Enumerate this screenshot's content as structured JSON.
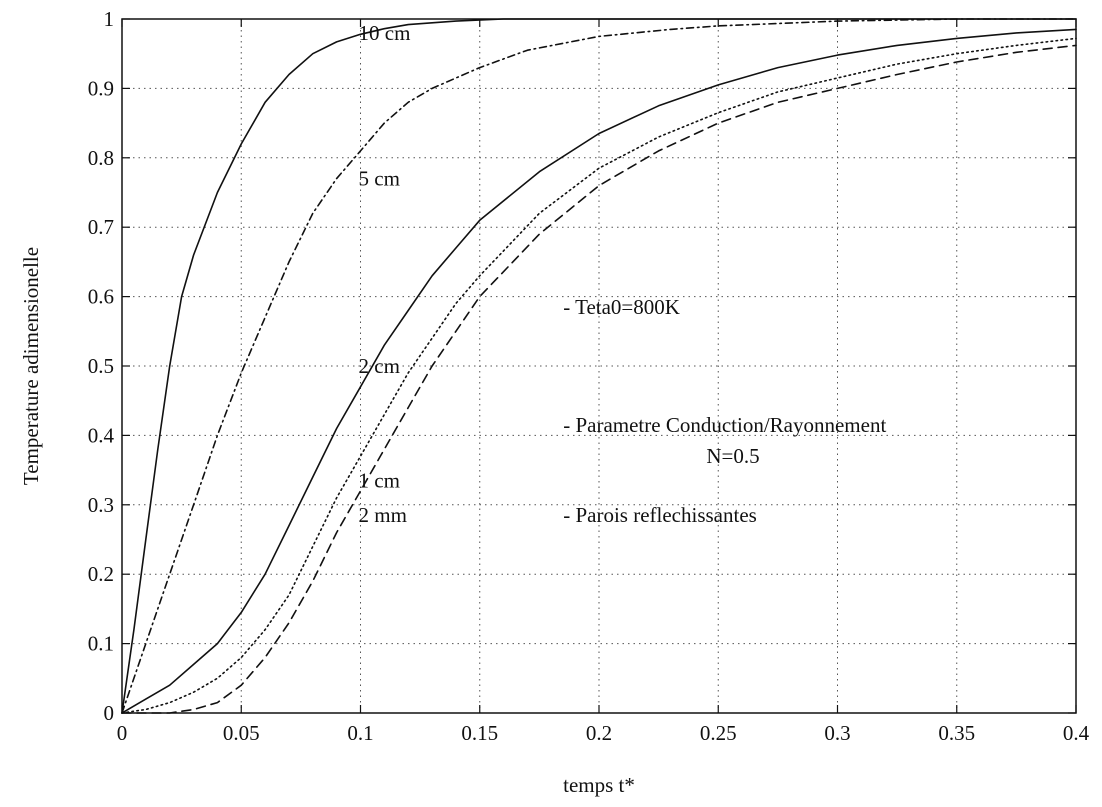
{
  "chart_data": {
    "type": "line",
    "title": "",
    "xlabel": "temps t*",
    "ylabel": "Temperature adimensionelle",
    "xlim": [
      0,
      0.4
    ],
    "ylim": [
      0,
      1
    ],
    "grid": true,
    "x_ticks": [
      "0",
      "0.05",
      "0.1",
      "0.15",
      "0.2",
      "0.25",
      "0.3",
      "0.35",
      "0.4"
    ],
    "y_ticks": [
      "0",
      "0.1",
      "0.2",
      "0.3",
      "0.4",
      "0.5",
      "0.6",
      "0.7",
      "0.8",
      "0.9",
      "1"
    ],
    "series": [
      {
        "name": "10 cm",
        "line_style": "solid",
        "points": [
          [
            0,
            0
          ],
          [
            0.005,
            0.12
          ],
          [
            0.01,
            0.25
          ],
          [
            0.015,
            0.38
          ],
          [
            0.02,
            0.5
          ],
          [
            0.025,
            0.6
          ],
          [
            0.03,
            0.66
          ],
          [
            0.04,
            0.75
          ],
          [
            0.05,
            0.82
          ],
          [
            0.06,
            0.88
          ],
          [
            0.07,
            0.92
          ],
          [
            0.08,
            0.95
          ],
          [
            0.09,
            0.967
          ],
          [
            0.1,
            0.978
          ],
          [
            0.11,
            0.986
          ],
          [
            0.12,
            0.992
          ],
          [
            0.14,
            0.997
          ],
          [
            0.16,
            1
          ],
          [
            0.2,
            1
          ],
          [
            0.3,
            1
          ],
          [
            0.4,
            1
          ]
        ]
      },
      {
        "name": "5 cm",
        "line_style": "dashdot",
        "points": [
          [
            0,
            0
          ],
          [
            0.01,
            0.1
          ],
          [
            0.02,
            0.2
          ],
          [
            0.03,
            0.3
          ],
          [
            0.04,
            0.4
          ],
          [
            0.05,
            0.49
          ],
          [
            0.06,
            0.57
          ],
          [
            0.07,
            0.65
          ],
          [
            0.08,
            0.72
          ],
          [
            0.09,
            0.77
          ],
          [
            0.1,
            0.81
          ],
          [
            0.11,
            0.85
          ],
          [
            0.12,
            0.88
          ],
          [
            0.13,
            0.9
          ],
          [
            0.15,
            0.93
          ],
          [
            0.17,
            0.955
          ],
          [
            0.2,
            0.975
          ],
          [
            0.23,
            0.985
          ],
          [
            0.25,
            0.99
          ],
          [
            0.3,
            0.997
          ],
          [
            0.35,
            1
          ],
          [
            0.4,
            1
          ]
        ]
      },
      {
        "name": "2 cm",
        "line_style": "solid",
        "points": [
          [
            0,
            0
          ],
          [
            0.01,
            0.02
          ],
          [
            0.02,
            0.04
          ],
          [
            0.03,
            0.07
          ],
          [
            0.04,
            0.1
          ],
          [
            0.05,
            0.145
          ],
          [
            0.06,
            0.2
          ],
          [
            0.07,
            0.27
          ],
          [
            0.08,
            0.34
          ],
          [
            0.09,
            0.41
          ],
          [
            0.1,
            0.47
          ],
          [
            0.11,
            0.53
          ],
          [
            0.12,
            0.58
          ],
          [
            0.13,
            0.63
          ],
          [
            0.14,
            0.67
          ],
          [
            0.15,
            0.71
          ],
          [
            0.175,
            0.78
          ],
          [
            0.2,
            0.835
          ],
          [
            0.225,
            0.875
          ],
          [
            0.25,
            0.905
          ],
          [
            0.275,
            0.93
          ],
          [
            0.3,
            0.948
          ],
          [
            0.325,
            0.962
          ],
          [
            0.35,
            0.972
          ],
          [
            0.375,
            0.98
          ],
          [
            0.4,
            0.985
          ]
        ]
      },
      {
        "name": "1 cm",
        "line_style": "dotted",
        "points": [
          [
            0,
            0
          ],
          [
            0.01,
            0.005
          ],
          [
            0.02,
            0.015
          ],
          [
            0.03,
            0.03
          ],
          [
            0.04,
            0.05
          ],
          [
            0.05,
            0.08
          ],
          [
            0.06,
            0.12
          ],
          [
            0.07,
            0.17
          ],
          [
            0.08,
            0.24
          ],
          [
            0.09,
            0.31
          ],
          [
            0.1,
            0.37
          ],
          [
            0.11,
            0.43
          ],
          [
            0.12,
            0.49
          ],
          [
            0.13,
            0.54
          ],
          [
            0.14,
            0.59
          ],
          [
            0.15,
            0.63
          ],
          [
            0.175,
            0.72
          ],
          [
            0.2,
            0.785
          ],
          [
            0.225,
            0.83
          ],
          [
            0.25,
            0.865
          ],
          [
            0.275,
            0.895
          ],
          [
            0.3,
            0.915
          ],
          [
            0.325,
            0.935
          ],
          [
            0.35,
            0.95
          ],
          [
            0.375,
            0.962
          ],
          [
            0.4,
            0.972
          ]
        ]
      },
      {
        "name": "2 mm",
        "line_style": "dashed",
        "points": [
          [
            0,
            0
          ],
          [
            0.02,
            0
          ],
          [
            0.03,
            0.005
          ],
          [
            0.04,
            0.015
          ],
          [
            0.05,
            0.04
          ],
          [
            0.06,
            0.08
          ],
          [
            0.07,
            0.13
          ],
          [
            0.08,
            0.19
          ],
          [
            0.09,
            0.26
          ],
          [
            0.1,
            0.32
          ],
          [
            0.11,
            0.38
          ],
          [
            0.12,
            0.44
          ],
          [
            0.13,
            0.5
          ],
          [
            0.14,
            0.55
          ],
          [
            0.15,
            0.6
          ],
          [
            0.175,
            0.69
          ],
          [
            0.2,
            0.76
          ],
          [
            0.225,
            0.81
          ],
          [
            0.25,
            0.85
          ],
          [
            0.275,
            0.88
          ],
          [
            0.3,
            0.9
          ],
          [
            0.325,
            0.92
          ],
          [
            0.35,
            0.938
          ],
          [
            0.375,
            0.952
          ],
          [
            0.4,
            0.962
          ]
        ]
      }
    ],
    "curve_labels": [
      {
        "text": "10 cm",
        "x": 0.1,
        "y": 0.98
      },
      {
        "text": "5 cm",
        "x": 0.1,
        "y": 0.77
      },
      {
        "text": "2 cm",
        "x": 0.1,
        "y": 0.5
      },
      {
        "text": "1 cm",
        "x": 0.1,
        "y": 0.335
      },
      {
        "text": "2 mm",
        "x": 0.1,
        "y": 0.285
      }
    ],
    "annotations": [
      {
        "text": "- Teta0=800K",
        "x": 0.185,
        "y": 0.585
      },
      {
        "text": "- Parametre Conduction/Rayonnement",
        "x": 0.185,
        "y": 0.415
      },
      {
        "text": "N=0.5",
        "x": 0.245,
        "y": 0.37
      },
      {
        "text": "- Parois reflechissantes",
        "x": 0.185,
        "y": 0.285
      }
    ]
  }
}
